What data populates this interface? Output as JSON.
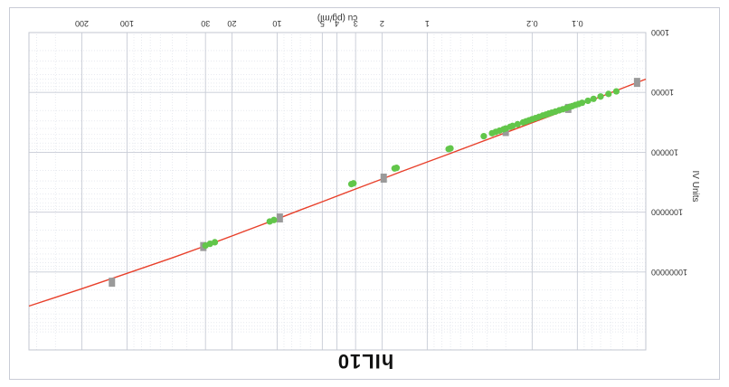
{
  "chart_data": {
    "type": "scatter",
    "orientation": "rotated-180",
    "title": "hIL10",
    "xlabel": "cu (pg/ml)",
    "ylabel": "IV Units",
    "x_scale": "log",
    "y_scale": "log",
    "xlim": [
      0.035,
      450
    ],
    "ylim": [
      1000,
      200000000
    ],
    "x_ticks": [
      {
        "value": 0.1,
        "label": "0.1"
      },
      {
        "value": 0.2,
        "label": "0.2"
      },
      {
        "value": 1,
        "label": "1"
      },
      {
        "value": 2,
        "label": "2"
      },
      {
        "value": 3,
        "label": "3"
      },
      {
        "value": 4,
        "label": "4"
      },
      {
        "value": 5,
        "label": "5"
      },
      {
        "value": 10,
        "label": "10"
      },
      {
        "value": 20,
        "label": "20"
      },
      {
        "value": 30,
        "label": "30"
      },
      {
        "value": 100,
        "label": "100"
      },
      {
        "value": 200,
        "label": "200"
      }
    ],
    "y_ticks": [
      {
        "value": 1000,
        "label": "1000"
      },
      {
        "value": 10000,
        "label": "10000"
      },
      {
        "value": 100000,
        "label": "100000"
      },
      {
        "value": 1000000,
        "label": "1000000"
      },
      {
        "value": 10000000,
        "label": "10000000"
      }
    ],
    "grid": true,
    "colors": {
      "curve": "#e8402b",
      "samples": "#62c64a",
      "standards": "#9a9a9a",
      "grid": "#d9dde6"
    },
    "series": [
      {
        "kind": "fit-curve",
        "x": [
          0.035,
          0.05,
          0.07,
          0.1,
          0.15,
          0.2,
          0.3,
          0.5,
          0.7,
          1,
          1.5,
          2,
          3,
          5,
          7,
          10,
          15,
          20,
          30,
          50,
          80,
          120,
          200,
          300,
          450
        ],
        "y": [
          6000,
          8500,
          11800,
          16500,
          24500,
          32000,
          47000,
          76000,
          104000,
          145000,
          212000,
          280000,
          410000,
          670000,
          920000,
          1300000,
          1900000,
          2500000,
          3650000,
          5800000,
          8700000,
          12300000,
          19000000,
          26500000,
          37000000
        ]
      },
      {
        "kind": "standards",
        "x": [
          0.04,
          0.115,
          0.3,
          1.95,
          9.6,
          31,
          126
        ],
        "y": [
          6800,
          18500,
          45000,
          270000,
          1250000,
          3750000,
          14800000
        ]
      },
      {
        "kind": "samples",
        "x": [
          0.055,
          0.062,
          0.07,
          0.078,
          0.085,
          0.093,
          0.098,
          0.103,
          0.108,
          0.112,
          0.118,
          0.125,
          0.132,
          0.14,
          0.148,
          0.155,
          0.162,
          0.17,
          0.18,
          0.19,
          0.2,
          0.21,
          0.22,
          0.23,
          0.25,
          0.27,
          0.28,
          0.3,
          0.31,
          0.33,
          0.35,
          0.37,
          0.42,
          0.7,
          0.72,
          1.6,
          1.65,
          3.1,
          3.2,
          10.5,
          11.2,
          26,
          28,
          30
        ],
        "y": [
          9600,
          10600,
          11700,
          12800,
          13800,
          14900,
          15600,
          16200,
          16900,
          17400,
          18200,
          19100,
          19900,
          20900,
          21800,
          22600,
          23500,
          24300,
          25600,
          26800,
          28000,
          29300,
          30500,
          31700,
          34000,
          36300,
          37500,
          40000,
          41200,
          43500,
          45700,
          48000,
          53800,
          86000,
          88200,
          182000,
          186000,
          330000,
          340000,
          1350000,
          1430000,
          3180000,
          3380000,
          3620000
        ]
      }
    ]
  }
}
